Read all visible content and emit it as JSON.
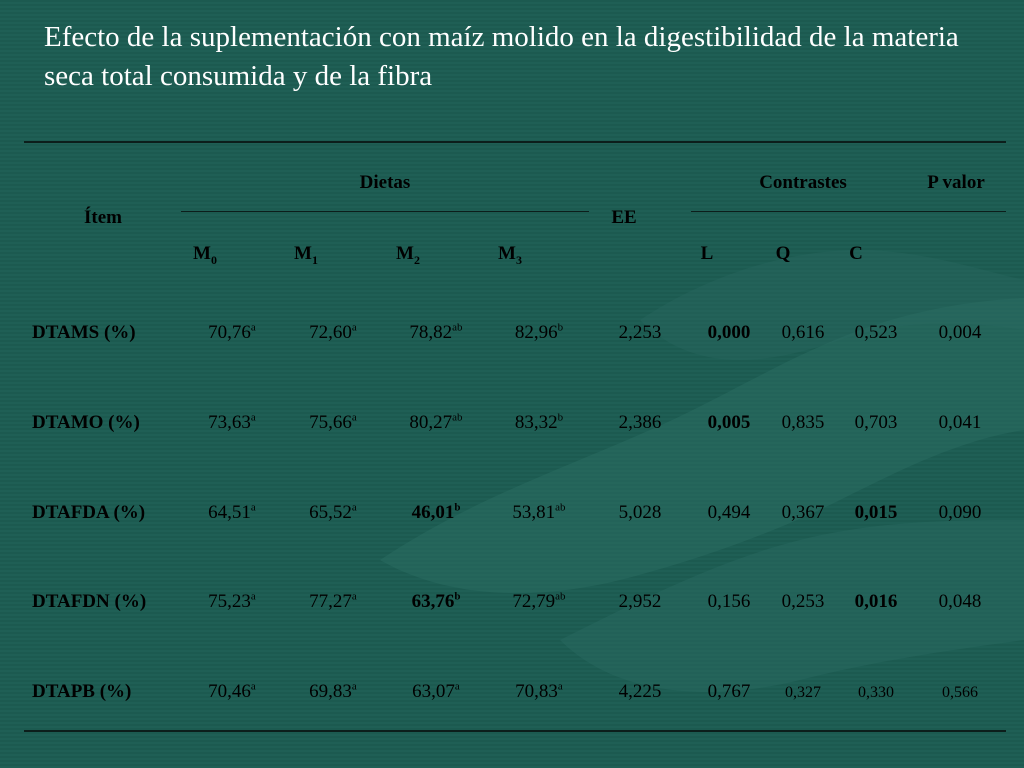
{
  "title": "Efecto de la suplementación con maíz molido en la digestibilidad de la materia seca total consumida y de la fibra",
  "headers": {
    "item": "Ítem",
    "dietas": "Dietas",
    "ee": "EE",
    "contrastes": "Contrastes",
    "p_valor": "P valor",
    "m0": "M",
    "m0_sub": "0",
    "m1": "M",
    "m1_sub": "1",
    "m2": "M",
    "m2_sub": "2",
    "m3": "M",
    "m3_sub": "3",
    "l": "L",
    "q": "Q",
    "c": "C"
  },
  "rows": [
    {
      "label": "DTAMS (%)",
      "m0": "70,76",
      "m0_sup": "a",
      "m1": "72,60",
      "m1_sup": "a",
      "m2": "78,82",
      "m2_sup": "ab",
      "m3": "82,96",
      "m3_sup": "b",
      "ee": "2,253",
      "l": "0,000",
      "q": "0,616",
      "c": "0,523",
      "p": "0,004"
    },
    {
      "label": "DTAMO (%)",
      "m0": "73,63",
      "m0_sup": "a",
      "m1": "75,66",
      "m1_sup": "a",
      "m2": "80,27",
      "m2_sup": "ab",
      "m3": "83,32",
      "m3_sup": "b",
      "ee": "2,386",
      "l": "0,005",
      "q": "0,835",
      "c": "0,703",
      "p": "0,041"
    },
    {
      "label": "DTAFDA (%)",
      "m0": "64,51",
      "m0_sup": "a",
      "m1": "65,52",
      "m1_sup": "a",
      "m2": "46,01",
      "m2_sup": "b",
      "m3": "53,81",
      "m3_sup": "ab",
      "ee": "5,028",
      "l": "0,494",
      "q": "0,367",
      "c": "0,015",
      "p": "0,090"
    },
    {
      "label": "DTAFDN (%)",
      "m0": "75,23",
      "m0_sup": "a",
      "m1": "77,27",
      "m1_sup": "a",
      "m2": "63,76",
      "m2_sup": "b",
      "m3": "72,79",
      "m3_sup": "ab",
      "ee": "2,952",
      "l": "0,156",
      "q": "0,253",
      "c": "0,016",
      "p": "0,048"
    },
    {
      "label": "DTAPB (%)",
      "m0": "70,46",
      "m0_sup": "a",
      "m1": "69,83",
      "m1_sup": "a",
      "m2": "63,07",
      "m2_sup": "a",
      "m3": "70,83",
      "m3_sup": "a",
      "ee": "4,225",
      "l": "0,767",
      "q": "0,327",
      "c": "0,330",
      "p": "0,566"
    }
  ]
}
